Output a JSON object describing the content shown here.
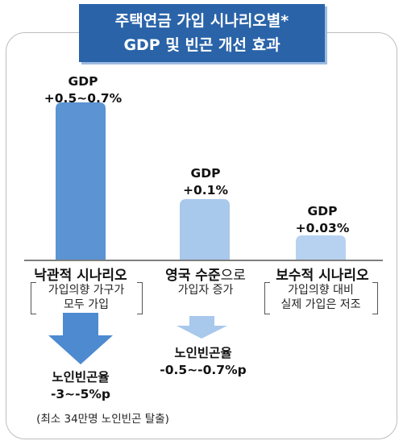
{
  "header": {
    "title_line1": "주택연금 가입 시나리오별*",
    "title_line2": "GDP 및 빈곤 개선 효과"
  },
  "chart_data": {
    "type": "bar",
    "title": "주택연금 가입 시나리오별* GDP 및 빈곤 개선 효과",
    "categories": [
      "낙관적 시나리오",
      "영국 수준으로",
      "보수적 시나리오"
    ],
    "series": [
      {
        "values": [
          0.6,
          0.1,
          0.03
        ]
      }
    ],
    "data_labels": [
      "GDP\n+0.5~0.7%",
      "GDP\n+0.1%",
      "GDP\n+0.03%"
    ],
    "bar_colors": [
      "#5b93d3",
      "#a8c8ec",
      "#b6d2f0"
    ],
    "ylim": [
      0,
      0.7
    ]
  },
  "labels": {
    "bar1_gdp": "GDP",
    "bar1_value": "+0.5~0.7%",
    "bar2_gdp": "GDP",
    "bar2_value": "+0.1%",
    "bar3_gdp": "GDP",
    "bar3_value": "+0.03%",
    "cat1": "낙관적 시나리오",
    "cat2_bold": "영국 수준",
    "cat2_plain": "으로",
    "cat3": "보수적 시나리오",
    "cat1_sub1": "가입의향 가구가",
    "cat1_sub2": "모두 가입",
    "cat2_sub1": "가입자 증가",
    "cat3_sub1": "가입의향 대비",
    "cat3_sub2": "실제 가입은 저조",
    "effect1_label": "노인빈곤율",
    "effect1_value": "-3~-5%p",
    "effect2_label": "노인빈곤율",
    "effect2_value": "-0.5~-0.7%p",
    "effect1_note": "(최소 34만명 노인빈곤 탈출)"
  },
  "colors": {
    "title_bg": "#2a63a8",
    "arrow_dark": "#4d8ad0",
    "arrow_light": "#a8c8ec"
  }
}
